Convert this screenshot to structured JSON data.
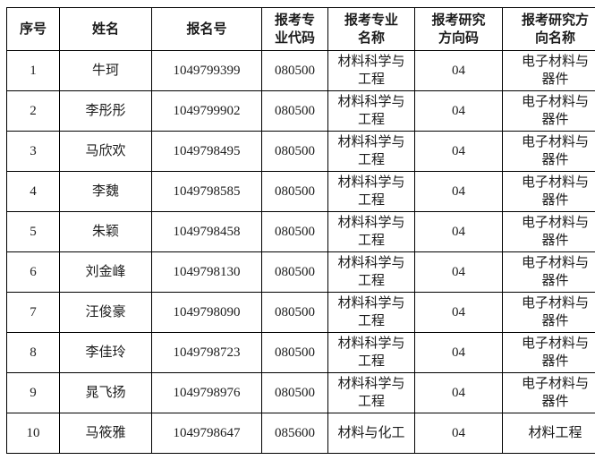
{
  "table": {
    "headers": [
      "序号",
      "姓名",
      "报名号",
      "报考专\n业代码",
      "报考专业\n名称",
      "报考研究\n方向码",
      "报考研究方\n向名称"
    ],
    "rows": [
      [
        "1",
        "牛珂",
        "1049799399",
        "080500",
        "材料科学与\n工程",
        "04",
        "电子材料与\n器件"
      ],
      [
        "2",
        "李彤彤",
        "1049799902",
        "080500",
        "材料科学与\n工程",
        "04",
        "电子材料与\n器件"
      ],
      [
        "3",
        "马欣欢",
        "1049798495",
        "080500",
        "材料科学与\n工程",
        "04",
        "电子材料与\n器件"
      ],
      [
        "4",
        "李魏",
        "1049798585",
        "080500",
        "材料科学与\n工程",
        "04",
        "电子材料与\n器件"
      ],
      [
        "5",
        "朱颖",
        "1049798458",
        "080500",
        "材料科学与\n工程",
        "04",
        "电子材料与\n器件"
      ],
      [
        "6",
        "刘金峰",
        "1049798130",
        "080500",
        "材料科学与\n工程",
        "04",
        "电子材料与\n器件"
      ],
      [
        "7",
        "汪俊豪",
        "1049798090",
        "080500",
        "材料科学与\n工程",
        "04",
        "电子材料与\n器件"
      ],
      [
        "8",
        "李佳玲",
        "1049798723",
        "080500",
        "材料科学与\n工程",
        "04",
        "电子材料与\n器件"
      ],
      [
        "9",
        "晁飞扬",
        "1049798976",
        "080500",
        "材料科学与\n工程",
        "04",
        "电子材料与\n器件"
      ],
      [
        "10",
        "马筱雅",
        "1049798647",
        "085600",
        "材料与化工",
        "04",
        "材料工程"
      ]
    ],
    "colors": {
      "border": "#000000",
      "text": "#1c1c1c",
      "background": "#ffffff"
    }
  }
}
